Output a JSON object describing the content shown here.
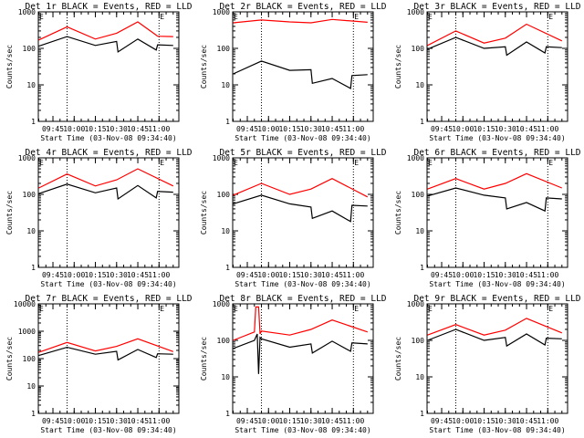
{
  "figure": {
    "x_ticks": [
      "09:45",
      "10:00",
      "10:15",
      "10:30",
      "10:45",
      "11:00"
    ],
    "y_ticks": [
      "1",
      "10",
      "100",
      "1000"
    ],
    "colors": {
      "events": "#000000",
      "lld": "#ff0000",
      "guide": "#000000"
    }
  },
  "chart_data": [
    {
      "type": "line",
      "title": "Det 1r BLACK = Events, RED = LLD",
      "xlabel": "Start Time (03-Nov-08 09:34:40)",
      "ylabel": "Counts/sec",
      "y_scale": "log",
      "ylim": [
        1,
        1000
      ],
      "x_ticks": [
        "09:45",
        "10:00",
        "10:15",
        "10:30",
        "10:45",
        "11:00"
      ],
      "y_ticks": [
        "1",
        "10",
        "100",
        "1000"
      ],
      "vlines": [
        "09:55",
        "11:00"
      ],
      "flag": "E",
      "series": [
        {
          "name": "BLACK = Events",
          "color": "#000000",
          "x": [
            "09:35",
            "09:55",
            "10:15",
            "10:30",
            "10:31",
            "10:45",
            "10:58",
            "10:59",
            "11:10"
          ],
          "values": [
            115,
            210,
            120,
            155,
            80,
            180,
            90,
            125,
            120
          ]
        },
        {
          "name": "RED = LLD",
          "color": "#ff0000",
          "x": [
            "09:35",
            "09:55",
            "10:15",
            "10:30",
            "10:45",
            "10:58",
            "10:59",
            "11:10"
          ],
          "values": [
            170,
            390,
            180,
            260,
            530,
            230,
            215,
            210
          ]
        }
      ]
    },
    {
      "type": "line",
      "title": "Det 2r BLACK = Events, RED = LLD",
      "xlabel": "Start Time (03-Nov-08 09:34:40)",
      "ylabel": "Counts/sec",
      "y_scale": "log",
      "ylim": [
        1,
        1000
      ],
      "x_ticks": [
        "09:45",
        "10:00",
        "10:15",
        "10:30",
        "10:45",
        "11:00"
      ],
      "y_ticks": [
        "1",
        "10",
        "100",
        "1000"
      ],
      "vlines": [
        "09:55",
        "11:00"
      ],
      "flag": "E",
      "series": [
        {
          "name": "BLACK = Events",
          "color": "#000000",
          "x": [
            "09:35",
            "09:55",
            "10:15",
            "10:30",
            "10:31",
            "10:45",
            "10:58",
            "10:59",
            "11:10"
          ],
          "values": [
            20,
            45,
            25,
            26,
            11,
            15,
            8,
            18,
            19
          ]
        },
        {
          "name": "RED = LLD",
          "color": "#ff0000",
          "x": [
            "09:35",
            "09:55",
            "10:15",
            "10:30",
            "10:45",
            "11:10"
          ],
          "values": [
            500,
            600,
            530,
            500,
            620,
            520
          ]
        }
      ]
    },
    {
      "type": "line",
      "title": "Det 3r BLACK = Events, RED = LLD",
      "xlabel": "Start Time (03-Nov-08 09:34:40)",
      "ylabel": "Counts/sec",
      "y_scale": "log",
      "ylim": [
        1,
        1000
      ],
      "x_ticks": [
        "09:45",
        "10:00",
        "10:15",
        "10:30",
        "10:45",
        "11:00"
      ],
      "y_ticks": [
        "1",
        "10",
        "100",
        "1000"
      ],
      "vlines": [
        "09:55",
        "11:00"
      ],
      "flag": "E",
      "series": [
        {
          "name": "BLACK = Events",
          "color": "#000000",
          "x": [
            "09:35",
            "09:55",
            "10:15",
            "10:30",
            "10:31",
            "10:45",
            "10:58",
            "10:59",
            "11:10"
          ],
          "values": [
            95,
            200,
            100,
            110,
            65,
            150,
            75,
            110,
            105
          ]
        },
        {
          "name": "RED = LLD",
          "color": "#ff0000",
          "x": [
            "09:35",
            "09:55",
            "10:15",
            "10:30",
            "10:45",
            "11:10"
          ],
          "values": [
            120,
            300,
            140,
            190,
            460,
            160
          ]
        }
      ]
    },
    {
      "type": "line",
      "title": "Det 4r BLACK = Events, RED = LLD",
      "xlabel": "Start Time (03-Nov-08 09:34:40)",
      "ylabel": "Counts/sec",
      "y_scale": "log",
      "ylim": [
        1,
        1000
      ],
      "x_ticks": [
        "09:45",
        "10:00",
        "10:15",
        "10:30",
        "10:45",
        "11:00"
      ],
      "y_ticks": [
        "1",
        "10",
        "100",
        "1000"
      ],
      "vlines": [
        "09:55",
        "11:00"
      ],
      "flag": "E",
      "series": [
        {
          "name": "BLACK = Events",
          "color": "#000000",
          "x": [
            "09:35",
            "09:55",
            "10:15",
            "10:30",
            "10:31",
            "10:45",
            "10:58",
            "10:59",
            "11:10"
          ],
          "values": [
            105,
            190,
            110,
            150,
            75,
            175,
            80,
            120,
            115
          ]
        },
        {
          "name": "RED = LLD",
          "color": "#ff0000",
          "x": [
            "09:35",
            "09:55",
            "10:15",
            "10:30",
            "10:45",
            "11:10"
          ],
          "values": [
            150,
            360,
            170,
            250,
            500,
            170
          ]
        }
      ]
    },
    {
      "type": "line",
      "title": "Det 5r BLACK = Events, RED = LLD",
      "xlabel": "Start Time (03-Nov-08 09:34:40)",
      "ylabel": "Counts/sec",
      "y_scale": "log",
      "ylim": [
        1,
        1000
      ],
      "x_ticks": [
        "09:45",
        "10:00",
        "10:15",
        "10:30",
        "10:45",
        "11:00"
      ],
      "y_ticks": [
        "1",
        "10",
        "100",
        "1000"
      ],
      "vlines": [
        "09:55",
        "11:00"
      ],
      "flag": "E",
      "series": [
        {
          "name": "BLACK = Events",
          "color": "#000000",
          "x": [
            "09:35",
            "09:55",
            "10:15",
            "10:30",
            "10:31",
            "10:45",
            "10:58",
            "10:59",
            "11:10"
          ],
          "values": [
            55,
            95,
            55,
            45,
            22,
            35,
            18,
            50,
            48
          ]
        },
        {
          "name": "RED = LLD",
          "color": "#ff0000",
          "x": [
            "09:35",
            "09:55",
            "10:15",
            "10:30",
            "10:45",
            "11:10"
          ],
          "values": [
            95,
            200,
            100,
            140,
            270,
            85
          ]
        }
      ]
    },
    {
      "type": "line",
      "title": "Det 6r BLACK = Events, RED = LLD",
      "xlabel": "Start Time (03-Nov-08 09:34:40)",
      "ylabel": "Counts/sec",
      "y_scale": "log",
      "ylim": [
        1,
        1000
      ],
      "x_ticks": [
        "09:45",
        "10:00",
        "10:15",
        "10:30",
        "10:45",
        "11:00"
      ],
      "y_ticks": [
        "1",
        "10",
        "100",
        "1000"
      ],
      "vlines": [
        "09:55",
        "11:00"
      ],
      "flag": "E",
      "series": [
        {
          "name": "BLACK = Events",
          "color": "#000000",
          "x": [
            "09:35",
            "09:55",
            "10:15",
            "10:30",
            "10:31",
            "10:45",
            "10:58",
            "10:59",
            "11:10"
          ],
          "values": [
            90,
            150,
            95,
            80,
            40,
            60,
            35,
            80,
            75
          ]
        },
        {
          "name": "RED = LLD",
          "color": "#ff0000",
          "x": [
            "09:35",
            "09:55",
            "10:15",
            "10:30",
            "10:45",
            "11:10"
          ],
          "values": [
            140,
            270,
            140,
            200,
            370,
            150
          ]
        }
      ]
    },
    {
      "type": "line",
      "title": "Det 7r BLACK = Events, RED = LLD",
      "xlabel": "Start Time (03-Nov-08 09:34:40)",
      "ylabel": "Counts/sec",
      "y_scale": "log",
      "ylim": [
        1,
        10000
      ],
      "x_ticks": [
        "09:45",
        "10:00",
        "10:15",
        "10:30",
        "10:45",
        "11:00"
      ],
      "y_ticks": [
        "1",
        "10",
        "100",
        "1000",
        "10000"
      ],
      "vlines": [
        "09:55",
        "11:00"
      ],
      "flag": "E",
      "series": [
        {
          "name": "BLACK = Events",
          "color": "#000000",
          "x": [
            "09:35",
            "09:55",
            "10:15",
            "10:30",
            "10:31",
            "10:45",
            "10:58",
            "10:59",
            "11:10"
          ],
          "values": [
            130,
            260,
            145,
            185,
            90,
            215,
            110,
            150,
            145
          ]
        },
        {
          "name": "RED = LLD",
          "color": "#ff0000",
          "x": [
            "09:35",
            "09:55",
            "10:15",
            "10:30",
            "10:45",
            "11:10"
          ],
          "values": [
            170,
            390,
            190,
            280,
            530,
            180
          ]
        }
      ]
    },
    {
      "type": "line",
      "title": "Det 8r BLACK = Events, RED = LLD",
      "xlabel": "Start Time (03-Nov-08 09:34:40)",
      "ylabel": "Counts/sec",
      "y_scale": "log",
      "ylim": [
        1,
        1000
      ],
      "x_ticks": [
        "09:45",
        "10:00",
        "10:15",
        "10:30",
        "10:45",
        "11:00"
      ],
      "y_ticks": [
        "1",
        "10",
        "100",
        "1000"
      ],
      "vlines": [
        "09:55",
        "11:00"
      ],
      "flag": "E",
      "series": [
        {
          "name": "BLACK = Events",
          "color": "#000000",
          "x": [
            "09:35",
            "09:50",
            "09:52",
            "09:53",
            "09:54",
            "09:55",
            "10:15",
            "10:30",
            "10:31",
            "10:45",
            "10:58",
            "10:59",
            "11:10"
          ],
          "values": [
            60,
            100,
            150,
            12,
            120,
            110,
            65,
            80,
            45,
            95,
            50,
            85,
            80
          ]
        },
        {
          "name": "RED = LLD",
          "color": "#ff0000",
          "x": [
            "09:35",
            "09:50",
            "09:51",
            "09:53",
            "09:54",
            "09:55",
            "10:15",
            "10:30",
            "10:45",
            "11:10"
          ],
          "values": [
            100,
            170,
            820,
            820,
            150,
            180,
            140,
            200,
            360,
            170
          ]
        }
      ]
    },
    {
      "type": "line",
      "title": "Det 9r BLACK = Events, RED = LLD",
      "xlabel": "Start Time (03-Nov-08 09:34:40)",
      "ylabel": "Counts/sec",
      "y_scale": "log",
      "ylim": [
        1,
        1000
      ],
      "x_ticks": [
        "09:45",
        "10:00",
        "10:15",
        "10:30",
        "10:45",
        "11:00"
      ],
      "y_ticks": [
        "1",
        "10",
        "100",
        "1000"
      ],
      "vlines": [
        "09:55",
        "11:00"
      ],
      "flag": "E",
      "series": [
        {
          "name": "BLACK = Events",
          "color": "#000000",
          "x": [
            "09:35",
            "09:55",
            "10:15",
            "10:30",
            "10:31",
            "10:45",
            "10:58",
            "10:59",
            "11:10"
          ],
          "values": [
            100,
            200,
            100,
            120,
            70,
            150,
            75,
            115,
            110
          ]
        },
        {
          "name": "RED = LLD",
          "color": "#ff0000",
          "x": [
            "09:35",
            "09:55",
            "10:15",
            "10:30",
            "10:45",
            "11:10"
          ],
          "values": [
            140,
            270,
            140,
            190,
            400,
            160
          ]
        }
      ]
    }
  ]
}
